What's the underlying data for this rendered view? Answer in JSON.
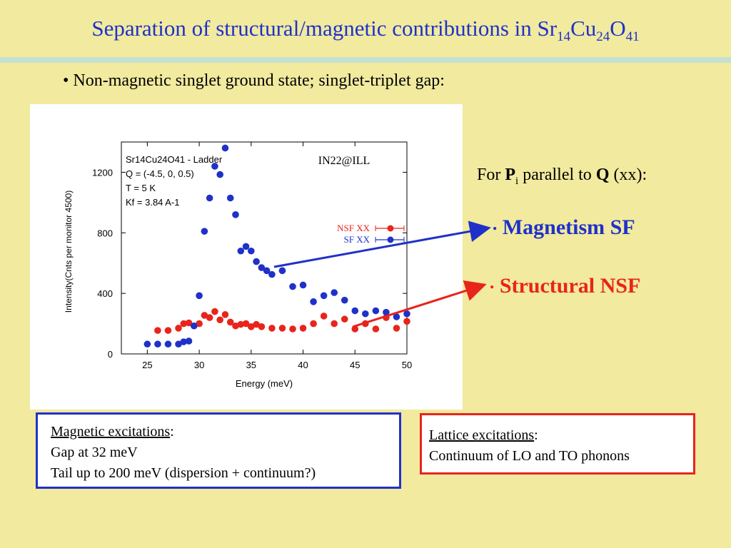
{
  "slide": {
    "title_main": "Separation of structural/magnetic contributions in Sr",
    "title_sub1": "14",
    "title_mid1": "Cu",
    "title_sub2": "24",
    "title_mid2": "O",
    "title_sub3": "41",
    "bullet": "• Non-magnetic singlet ground state; singlet-triplet gap:",
    "for_prefix": "For ",
    "for_p": "P",
    "for_i": "i",
    "for_mid": " parallel to ",
    "for_q": "Q",
    "for_suffix": " (xx):",
    "bullet_magnetism": "Magnetism  SF",
    "bullet_structural": "Structural  NSF",
    "box_magnetic_title": "Magnetic excitations",
    "box_magnetic_line1": "Gap at 32 meV",
    "box_magnetic_line2": "Tail up to 200 meV (dispersion + continuum?)",
    "box_lattice_title": "Lattice excitations",
    "box_lattice_line1": "Continuum of LO and TO phonons",
    "colon": ":"
  },
  "chart_data": {
    "type": "scatter",
    "xlabel": "Energy (meV)",
    "ylabel": "Intensity(Cnts per monitor 4500)",
    "xlim": [
      22.5,
      50
    ],
    "ylim": [
      0,
      1400
    ],
    "xticks": [
      25,
      30,
      35,
      40,
      45,
      50
    ],
    "yticks": [
      0,
      400,
      800,
      1200
    ],
    "instrument_label": "IN22@ILL",
    "info_lines": [
      "Sr14Cu24O41 - Ladder",
      "Q = (-4.5, 0, 0.5)",
      "T = 5 K",
      "Kf = 3.84 A-1"
    ],
    "legend_position": "right",
    "series": [
      {
        "name": "NSF XX",
        "color": "#e8241b",
        "x": [
          26,
          27,
          28,
          28.5,
          29,
          29.5,
          30,
          30.5,
          31,
          31.5,
          32,
          32.5,
          33,
          33.5,
          34,
          34.5,
          35,
          35.5,
          36,
          37,
          38,
          39,
          40,
          41,
          42,
          43,
          44,
          45,
          46,
          47,
          48,
          49,
          50
        ],
        "y": [
          155,
          155,
          170,
          200,
          205,
          185,
          200,
          255,
          240,
          280,
          225,
          260,
          210,
          185,
          195,
          200,
          180,
          195,
          180,
          170,
          170,
          165,
          170,
          200,
          250,
          200,
          230,
          165,
          200,
          165,
          240,
          170,
          215
        ]
      },
      {
        "name": "SF XX",
        "color": "#1f31c9",
        "x": [
          25,
          26,
          27,
          28,
          28.5,
          29,
          29.5,
          30,
          30.5,
          31,
          31.5,
          32,
          32.5,
          33,
          33.5,
          34,
          34.5,
          35,
          35.5,
          36,
          36.5,
          37,
          38,
          39,
          40,
          41,
          42,
          43,
          44,
          45,
          46,
          47,
          48,
          49,
          50
        ],
        "y": [
          65,
          65,
          65,
          65,
          80,
          85,
          185,
          385,
          810,
          1030,
          1240,
          1185,
          1360,
          1030,
          920,
          680,
          710,
          680,
          610,
          570,
          550,
          525,
          550,
          445,
          455,
          345,
          385,
          405,
          355,
          285,
          265,
          285,
          275,
          245,
          265
        ]
      }
    ]
  }
}
